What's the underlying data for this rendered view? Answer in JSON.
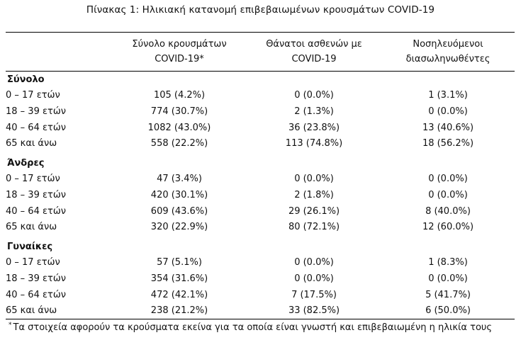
{
  "title": "Πίνακας 1: Ηλικιακή κατανομή επιβεβαιωμένων κρουσμάτων COVID-19",
  "columns": [
    {
      "line1": "Σύνολο κρουσμάτων",
      "line2": "COVID-19*"
    },
    {
      "line1": "Θάνατοι ασθενών με",
      "line2": "COVID-19"
    },
    {
      "line1": "Νοσηλευόμενοι",
      "line2": "διασωληνωθέντες"
    }
  ],
  "groups": [
    {
      "name": "Σύνολο",
      "rows": [
        {
          "age": "0 – 17 ετών",
          "cases": "105 (4.2%)",
          "deaths": "0 (0.0%)",
          "intubated": "1 (3.1%)"
        },
        {
          "age": "18 – 39 ετών",
          "cases": "774 (30.7%)",
          "deaths": "2 (1.3%)",
          "intubated": "0 (0.0%)"
        },
        {
          "age": "40 – 64 ετών",
          "cases": "1082 (43.0%)",
          "deaths": "36 (23.8%)",
          "intubated": "13 (40.6%)"
        },
        {
          "age": "65 και άνω",
          "cases": "558 (22.2%)",
          "deaths": "113 (74.8%)",
          "intubated": "18 (56.2%)"
        }
      ]
    },
    {
      "name": "Άνδρες",
      "rows": [
        {
          "age": "0 – 17 ετών",
          "cases": "47 (3.4%)",
          "deaths": "0 (0.0%)",
          "intubated": "0 (0.0%)"
        },
        {
          "age": "18 – 39 ετών",
          "cases": "420 (30.1%)",
          "deaths": "2 (1.8%)",
          "intubated": "0 (0.0%)"
        },
        {
          "age": "40 – 64 ετών",
          "cases": "609 (43.6%)",
          "deaths": "29 (26.1%)",
          "intubated": "8 (40.0%)"
        },
        {
          "age": "65 και άνω",
          "cases": "320 (22.9%)",
          "deaths": "80 (72.1%)",
          "intubated": "12 (60.0%)"
        }
      ]
    },
    {
      "name": "Γυναίκες",
      "rows": [
        {
          "age": "0 – 17 ετών",
          "cases": "57 (5.1%)",
          "deaths": "0 (0.0%)",
          "intubated": "1 (8.3%)"
        },
        {
          "age": "18 – 39 ετών",
          "cases": "354 (31.6%)",
          "deaths": "0 (0.0%)",
          "intubated": "0 (0.0%)"
        },
        {
          "age": "40 – 64 ετών",
          "cases": "472 (42.1%)",
          "deaths": "7 (17.5%)",
          "intubated": "5 (41.7%)"
        },
        {
          "age": "65 και άνω",
          "cases": "238 (21.2%)",
          "deaths": "33 (82.5%)",
          "intubated": "6 (50.0%)"
        }
      ]
    }
  ],
  "footnote": {
    "marker": "*",
    "text": "Τα στοιχεία αφορούν τα κρούσματα εκείνα για τα οποία είναι γνωστή και επιβεβαιωμένη η ηλικία τους"
  }
}
